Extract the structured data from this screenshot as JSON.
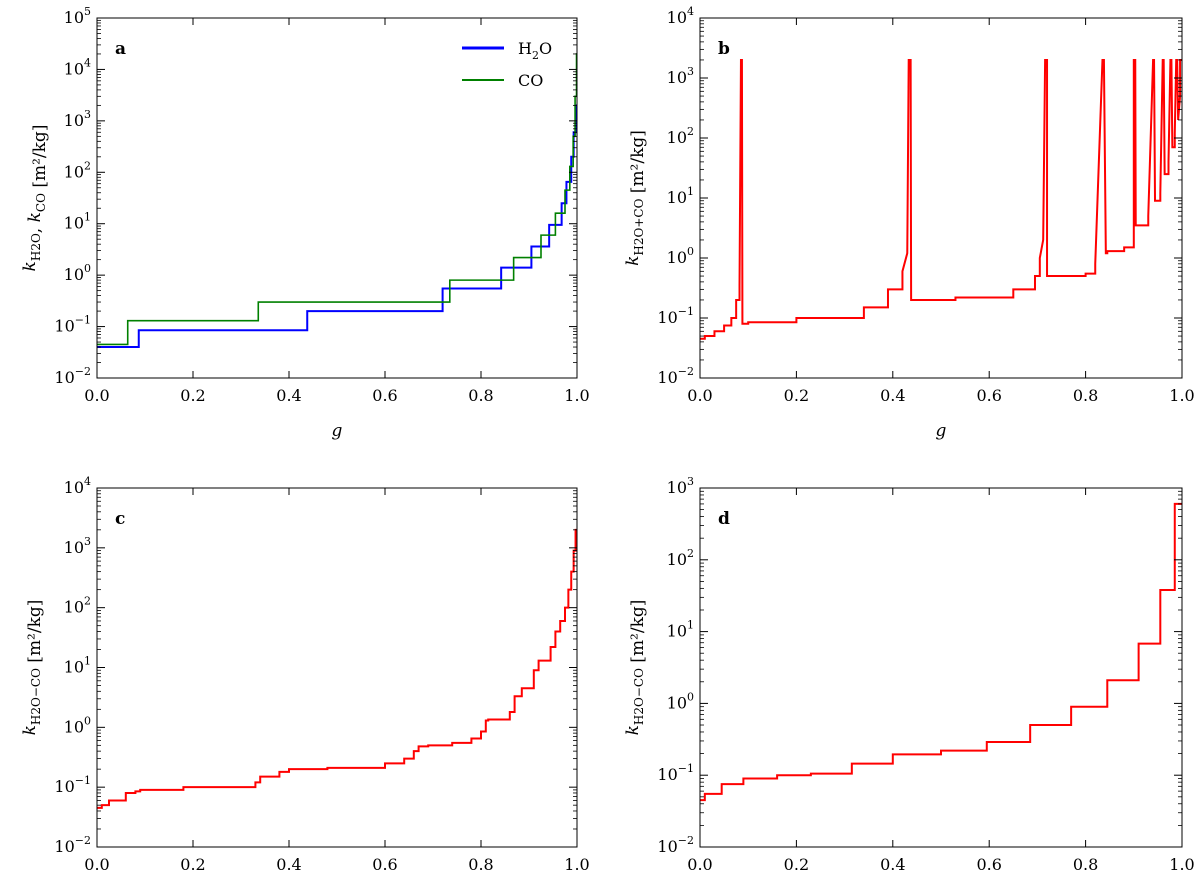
{
  "chart_data": [
    {
      "type": "line",
      "panel": "a",
      "xlabel": "g",
      "ylabel": "k_{H2O}, k_{CO} [m²/kg]",
      "xlim": [
        0.0,
        1.0
      ],
      "ylim": [
        0.01,
        100000
      ],
      "yscale": "log",
      "xticks": [
        "0.0",
        "0.2",
        "0.4",
        "0.6",
        "0.8",
        "1.0"
      ],
      "yticks": [
        {
          "base": "10",
          "exp": "−2"
        },
        {
          "base": "10",
          "exp": "−1"
        },
        {
          "base": "10",
          "exp": "0"
        },
        {
          "base": "10",
          "exp": "1"
        },
        {
          "base": "10",
          "exp": "2"
        },
        {
          "base": "10",
          "exp": "3"
        },
        {
          "base": "10",
          "exp": "4"
        },
        {
          "base": "10",
          "exp": "5"
        }
      ],
      "legend": {
        "placement": "top-right",
        "entries": [
          {
            "name": "H2O",
            "sub": "2",
            "color": "#0000ff"
          },
          {
            "name": "CO",
            "color": "#008000"
          }
        ]
      },
      "series": [
        {
          "name": "H2O",
          "color": "#0000ff",
          "x": [
            0.0,
            0.087,
            0.087,
            0.438,
            0.438,
            0.72,
            0.72,
            0.842,
            0.842,
            0.905,
            0.905,
            0.942,
            0.942,
            0.968,
            0.968,
            0.978,
            0.978,
            0.988,
            0.988,
            0.993,
            0.993,
            0.997,
            0.997,
            1.0
          ],
          "y": [
            0.04,
            0.04,
            0.085,
            0.085,
            0.2,
            0.2,
            0.55,
            0.55,
            1.4,
            1.4,
            3.6,
            3.6,
            9.5,
            9.5,
            25,
            25,
            65,
            65,
            200,
            200,
            600,
            600,
            2000,
            2000
          ]
        },
        {
          "name": "CO",
          "color": "#008000",
          "x": [
            0.0,
            0.064,
            0.064,
            0.336,
            0.336,
            0.735,
            0.735,
            0.868,
            0.868,
            0.925,
            0.925,
            0.955,
            0.955,
            0.975,
            0.975,
            0.985,
            0.985,
            0.992,
            0.992,
            0.996,
            0.996,
            0.999,
            0.999,
            1.0
          ],
          "y": [
            0.045,
            0.045,
            0.13,
            0.13,
            0.3,
            0.3,
            0.8,
            0.8,
            2.2,
            2.2,
            6,
            6,
            16,
            16,
            45,
            45,
            130,
            130,
            500,
            500,
            3000,
            3000,
            20000,
            20000
          ]
        }
      ]
    },
    {
      "type": "line",
      "panel": "b",
      "xlabel": "g",
      "ylabel": "k_{H2O+CO} [m²/kg]",
      "xlim": [
        0.0,
        1.0
      ],
      "ylim": [
        0.01,
        10000
      ],
      "yscale": "log",
      "xticks": [
        "0.0",
        "0.2",
        "0.4",
        "0.6",
        "0.8",
        "1.0"
      ],
      "yticks": [
        {
          "base": "10",
          "exp": "−2"
        },
        {
          "base": "10",
          "exp": "−1"
        },
        {
          "base": "10",
          "exp": "0"
        },
        {
          "base": "10",
          "exp": "1"
        },
        {
          "base": "10",
          "exp": "2"
        },
        {
          "base": "10",
          "exp": "3"
        },
        {
          "base": "10",
          "exp": "4"
        }
      ],
      "series": [
        {
          "name": "H2O+CO",
          "color": "#ff0000",
          "x": [
            0.0,
            0.01,
            0.01,
            0.03,
            0.03,
            0.05,
            0.05,
            0.065,
            0.065,
            0.075,
            0.075,
            0.082,
            0.082,
            0.085,
            0.087,
            0.088,
            0.09,
            0.09,
            0.1,
            0.1,
            0.2,
            0.2,
            0.34,
            0.34,
            0.39,
            0.39,
            0.42,
            0.42,
            0.43,
            0.433,
            0.437,
            0.438,
            0.44,
            0.44,
            0.53,
            0.53,
            0.65,
            0.65,
            0.695,
            0.695,
            0.705,
            0.705,
            0.712,
            0.716,
            0.72,
            0.72,
            0.8,
            0.8,
            0.82,
            0.82,
            0.835,
            0.838,
            0.842,
            0.843,
            0.845,
            0.845,
            0.85,
            0.85,
            0.88,
            0.88,
            0.9,
            0.9,
            0.903,
            0.904,
            0.905,
            0.905,
            0.93,
            0.93,
            0.94,
            0.942,
            0.944,
            0.944,
            0.955,
            0.955,
            0.96,
            0.962,
            0.964,
            0.964,
            0.972,
            0.972,
            0.976,
            0.978,
            0.98,
            0.98,
            0.985,
            0.985,
            0.988,
            0.99,
            0.992,
            0.992,
            0.996,
            0.996,
            1.0
          ],
          "y": [
            0.045,
            0.045,
            0.05,
            0.05,
            0.06,
            0.06,
            0.075,
            0.075,
            0.1,
            0.1,
            0.2,
            0.2,
            0.35,
            2000,
            2000,
            0.08,
            0.08,
            0.08,
            0.08,
            0.085,
            0.085,
            0.1,
            0.1,
            0.15,
            0.15,
            0.3,
            0.3,
            0.6,
            1.2,
            2000,
            2000,
            0.2,
            0.2,
            0.2,
            0.2,
            0.22,
            0.22,
            0.3,
            0.3,
            0.5,
            0.5,
            1.0,
            2.0,
            2000,
            2000,
            0.5,
            0.5,
            0.55,
            0.55,
            0.8,
            2000,
            2000,
            1.2,
            1.2,
            1.2,
            1.3,
            1.3,
            1.3,
            1.3,
            1.5,
            1.5,
            2000,
            2000,
            3.5,
            3.5,
            3.5,
            3.5,
            5,
            2000,
            2000,
            9,
            9,
            9,
            12,
            2000,
            2000,
            25,
            25,
            25,
            40,
            2000,
            2000,
            70,
            70,
            70,
            120,
            2000,
            2000,
            200,
            200,
            500,
            2000,
            2000
          ]
        }
      ]
    },
    {
      "type": "line",
      "panel": "c",
      "xlabel": "g",
      "ylabel": "k_{H2O−CO} [m²/kg]",
      "xlim": [
        0.0,
        1.0
      ],
      "ylim": [
        0.01,
        10000
      ],
      "yscale": "log",
      "xticks": [
        "0.0",
        "0.2",
        "0.4",
        "0.6",
        "0.8",
        "1.0"
      ],
      "yticks": [
        {
          "base": "10",
          "exp": "−2"
        },
        {
          "base": "10",
          "exp": "−1"
        },
        {
          "base": "10",
          "exp": "0"
        },
        {
          "base": "10",
          "exp": "1"
        },
        {
          "base": "10",
          "exp": "2"
        },
        {
          "base": "10",
          "exp": "3"
        },
        {
          "base": "10",
          "exp": "4"
        }
      ],
      "series": [
        {
          "name": "H2O−CO",
          "color": "#ff0000",
          "x": [
            0.0,
            0.01,
            0.01,
            0.025,
            0.025,
            0.06,
            0.06,
            0.08,
            0.08,
            0.09,
            0.09,
            0.18,
            0.18,
            0.33,
            0.33,
            0.34,
            0.34,
            0.38,
            0.38,
            0.4,
            0.4,
            0.48,
            0.48,
            0.6,
            0.6,
            0.64,
            0.64,
            0.66,
            0.66,
            0.67,
            0.67,
            0.69,
            0.69,
            0.74,
            0.74,
            0.78,
            0.78,
            0.8,
            0.8,
            0.81,
            0.81,
            0.815,
            0.815,
            0.86,
            0.86,
            0.87,
            0.87,
            0.885,
            0.885,
            0.91,
            0.91,
            0.92,
            0.92,
            0.945,
            0.945,
            0.955,
            0.955,
            0.965,
            0.965,
            0.975,
            0.975,
            0.982,
            0.982,
            0.988,
            0.988,
            0.993,
            0.993,
            0.997,
            0.997,
            1.0
          ],
          "y": [
            0.045,
            0.045,
            0.05,
            0.05,
            0.06,
            0.06,
            0.08,
            0.08,
            0.085,
            0.085,
            0.09,
            0.09,
            0.1,
            0.1,
            0.12,
            0.12,
            0.15,
            0.15,
            0.18,
            0.18,
            0.2,
            0.2,
            0.21,
            0.21,
            0.25,
            0.25,
            0.3,
            0.3,
            0.4,
            0.4,
            0.48,
            0.48,
            0.5,
            0.5,
            0.55,
            0.55,
            0.65,
            0.65,
            0.85,
            0.85,
            1.3,
            1.3,
            1.35,
            1.35,
            1.8,
            1.8,
            3.3,
            3.3,
            4.5,
            4.5,
            9,
            9,
            13,
            13,
            22,
            22,
            40,
            40,
            60,
            60,
            100,
            100,
            200,
            200,
            400,
            400,
            900,
            900,
            2000,
            2000
          ]
        }
      ]
    },
    {
      "type": "line",
      "panel": "d",
      "xlabel": "g",
      "ylabel": "k_{H2O−CO} [m²/kg]",
      "xlim": [
        0.0,
        1.0
      ],
      "ylim": [
        0.01,
        1000
      ],
      "yscale": "log",
      "xticks": [
        "0.0",
        "0.2",
        "0.4",
        "0.6",
        "0.8",
        "1.0"
      ],
      "yticks": [
        {
          "base": "10",
          "exp": "−2"
        },
        {
          "base": "10",
          "exp": "−1"
        },
        {
          "base": "10",
          "exp": "0"
        },
        {
          "base": "10",
          "exp": "1"
        },
        {
          "base": "10",
          "exp": "2"
        },
        {
          "base": "10",
          "exp": "3"
        }
      ],
      "series": [
        {
          "name": "H2O−CO",
          "color": "#ff0000",
          "x": [
            0.0,
            0.01,
            0.01,
            0.045,
            0.045,
            0.09,
            0.09,
            0.16,
            0.16,
            0.23,
            0.23,
            0.315,
            0.315,
            0.4,
            0.4,
            0.5,
            0.5,
            0.595,
            0.595,
            0.685,
            0.685,
            0.77,
            0.77,
            0.845,
            0.845,
            0.91,
            0.91,
            0.955,
            0.955,
            0.985,
            0.985,
            1.0
          ],
          "y": [
            0.045,
            0.045,
            0.055,
            0.055,
            0.075,
            0.075,
            0.09,
            0.09,
            0.1,
            0.1,
            0.105,
            0.105,
            0.145,
            0.145,
            0.195,
            0.195,
            0.22,
            0.22,
            0.29,
            0.29,
            0.5,
            0.5,
            0.9,
            0.9,
            2.1,
            2.1,
            6.8,
            6.8,
            38,
            38,
            600,
            600
          ]
        }
      ]
    }
  ]
}
